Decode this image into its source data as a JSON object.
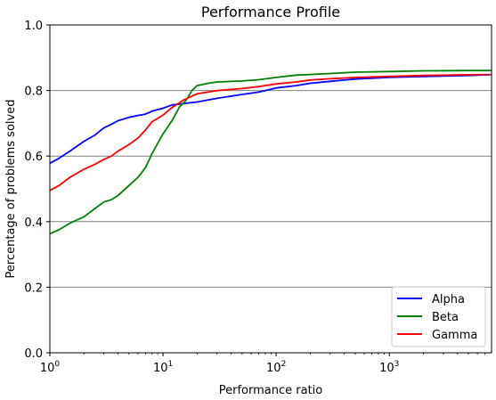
{
  "chart_data": {
    "type": "line",
    "title": "Performance Profile",
    "xlabel": "Performance ratio",
    "ylabel": "Percentage of problems solved",
    "xscale": "log",
    "xlim": [
      1,
      8000
    ],
    "ylim": [
      0,
      1.0
    ],
    "x_ticks": [
      {
        "value": 1,
        "base": "10",
        "exp": "0"
      },
      {
        "value": 10,
        "base": "10",
        "exp": "1"
      },
      {
        "value": 100,
        "base": "10",
        "exp": "2"
      },
      {
        "value": 1000,
        "base": "10",
        "exp": "3"
      }
    ],
    "y_ticks": [
      {
        "value": 0.0,
        "label": "0.0"
      },
      {
        "value": 0.2,
        "label": "0.2"
      },
      {
        "value": 0.4,
        "label": "0.4"
      },
      {
        "value": 0.6,
        "label": "0.6"
      },
      {
        "value": 0.8,
        "label": "0.8"
      },
      {
        "value": 1.0,
        "label": "1.0"
      }
    ],
    "grid": "horizontal",
    "legend_position": "bottom-right",
    "series": [
      {
        "name": "Alpha",
        "color": "#0000ff",
        "x": [
          1,
          1.2,
          1.5,
          2,
          2.5,
          3,
          3.5,
          4,
          5,
          6,
          7,
          8,
          10,
          12,
          15,
          20,
          30,
          50,
          70,
          100,
          150,
          200,
          300,
          500,
          1000,
          2000,
          5000,
          8000
        ],
        "y": [
          0.578,
          0.593,
          0.615,
          0.645,
          0.664,
          0.686,
          0.697,
          0.708,
          0.718,
          0.724,
          0.728,
          0.737,
          0.746,
          0.756,
          0.76,
          0.765,
          0.776,
          0.788,
          0.795,
          0.808,
          0.815,
          0.822,
          0.828,
          0.835,
          0.84,
          0.843,
          0.846,
          0.848
        ]
      },
      {
        "name": "Beta",
        "color": "#008000",
        "x": [
          1,
          1.2,
          1.5,
          2,
          2.5,
          3,
          3.5,
          4,
          5,
          6,
          7,
          8,
          9,
          10,
          12,
          14,
          16,
          18,
          20,
          25,
          30,
          50,
          70,
          100,
          150,
          200,
          300,
          500,
          1000,
          2000,
          5000,
          8000
        ],
        "y": [
          0.363,
          0.375,
          0.395,
          0.415,
          0.44,
          0.46,
          0.467,
          0.48,
          0.51,
          0.535,
          0.565,
          0.608,
          0.64,
          0.668,
          0.708,
          0.75,
          0.77,
          0.8,
          0.815,
          0.822,
          0.826,
          0.829,
          0.833,
          0.84,
          0.847,
          0.849,
          0.852,
          0.856,
          0.858,
          0.86,
          0.861,
          0.861
        ]
      },
      {
        "name": "Gamma",
        "color": "#ff0000",
        "x": [
          1,
          1.2,
          1.5,
          2,
          2.5,
          3,
          3.5,
          4,
          5,
          6,
          7,
          8,
          10,
          12,
          15,
          20,
          30,
          50,
          70,
          100,
          150,
          200,
          300,
          500,
          1000,
          2000,
          5000,
          8000
        ],
        "y": [
          0.495,
          0.51,
          0.535,
          0.56,
          0.575,
          0.59,
          0.6,
          0.615,
          0.635,
          0.655,
          0.68,
          0.705,
          0.725,
          0.748,
          0.77,
          0.79,
          0.8,
          0.806,
          0.812,
          0.82,
          0.826,
          0.832,
          0.836,
          0.84,
          0.843,
          0.846,
          0.848,
          0.849
        ]
      }
    ]
  }
}
